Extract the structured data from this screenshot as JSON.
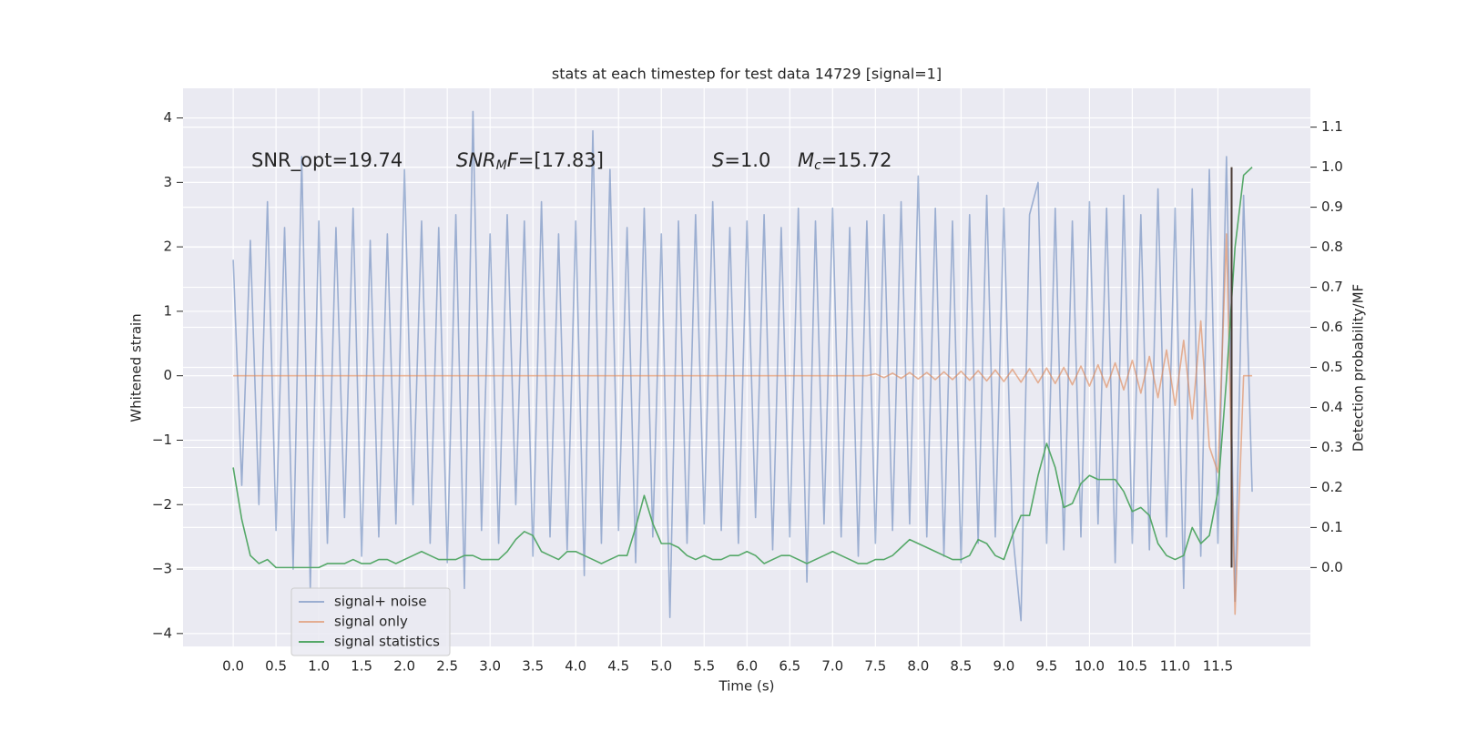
{
  "chart_data": {
    "type": "line",
    "title": "stats at each timestep for test data 14729 [signal=1]",
    "xlabel": "Time (s)",
    "ylabel": "Whitened strain",
    "y2label": "Detection probability/MF",
    "annotations": [
      {
        "text": "SNR_opt=19.74"
      },
      {
        "symbol": "SNR",
        "subscript": "M",
        "symbol_tail": "F",
        "text": "=[17.83]"
      },
      {
        "symbol": "S",
        "text": "=1.0"
      },
      {
        "symbol": "M",
        "subscript": "c",
        "text": "=15.72"
      }
    ],
    "grid": true,
    "legend": "lower left",
    "xlim": [
      -0.586,
      12.58
    ],
    "ylim": [
      -4.2,
      4.46
    ],
    "y2lim": [
      -0.197,
      1.197
    ],
    "xticks": [
      {
        "value": 0,
        "label": "0.0"
      },
      0.5,
      {
        "value": 1,
        "label": "1.0"
      },
      1.5,
      {
        "value": 2,
        "label": "2.0"
      },
      2.5,
      {
        "value": 3,
        "label": "3.0"
      },
      3.5,
      {
        "value": 4,
        "label": "4.0"
      },
      4.5,
      {
        "value": 5,
        "label": "5.0"
      },
      5.5,
      {
        "value": 6,
        "label": "6.0"
      },
      6.5,
      {
        "value": 7,
        "label": "7.0"
      },
      7.5,
      {
        "value": 8,
        "label": "8.0"
      },
      8.5,
      {
        "value": 9,
        "label": "9.0"
      },
      9.5,
      {
        "value": 10,
        "label": "10.0"
      },
      10.5,
      {
        "value": 11,
        "label": "11.0"
      },
      11.5
    ],
    "yticks": [
      {
        "value": -4,
        "label": "−4"
      },
      {
        "value": -3,
        "label": "−3"
      },
      {
        "value": -2,
        "label": "−2"
      },
      {
        "value": -1,
        "label": "−1"
      },
      0,
      1,
      2,
      3,
      4
    ],
    "y2ticks": [
      {
        "value": 0,
        "label": "0.0"
      },
      0.1,
      0.2,
      0.3,
      0.4,
      0.5,
      0.6,
      0.7,
      0.8,
      0.9,
      {
        "value": 1,
        "label": "1.0"
      },
      1.1
    ],
    "x": [
      0,
      0.1,
      0.2,
      0.3,
      0.4,
      0.5,
      0.6,
      0.7,
      0.8,
      0.9,
      1,
      1.1,
      1.2,
      1.3,
      1.4,
      1.5,
      1.6,
      1.7,
      1.8,
      1.9,
      2,
      2.1,
      2.2,
      2.3,
      2.4,
      2.5,
      2.6,
      2.7,
      2.8,
      2.9,
      3,
      3.1,
      3.2,
      3.3,
      3.4,
      3.5,
      3.6,
      3.7,
      3.8,
      3.9,
      4,
      4.1,
      4.2,
      4.3,
      4.4,
      4.5,
      4.6,
      4.7,
      4.8,
      4.9,
      5,
      5.1,
      5.2,
      5.3,
      5.4,
      5.5,
      5.6,
      5.7,
      5.8,
      5.9,
      6,
      6.1,
      6.2,
      6.3,
      6.4,
      6.5,
      6.6,
      6.7,
      6.8,
      6.9,
      7,
      7.1,
      7.2,
      7.3,
      7.4,
      7.5,
      7.6,
      7.7,
      7.8,
      7.9,
      8,
      8.1,
      8.2,
      8.3,
      8.4,
      8.5,
      8.6,
      8.7,
      8.8,
      8.9,
      9,
      9.1,
      9.2,
      9.3,
      9.4,
      9.5,
      9.6,
      9.7,
      9.8,
      9.9,
      10,
      10.1,
      10.2,
      10.3,
      10.4,
      10.5,
      10.6,
      10.7,
      10.8,
      10.9,
      11,
      11.1,
      11.2,
      11.3,
      11.4,
      11.5,
      11.6,
      11.7,
      11.8,
      11.9
    ],
    "series": [
      {
        "name": "signal+ noise",
        "color": "#4c72b0",
        "alpha": 0.5,
        "values": [
          1.8,
          -1.7,
          2.1,
          -2.0,
          2.7,
          -2.4,
          2.3,
          -3.0,
          3.4,
          -3.3,
          2.4,
          -2.6,
          2.3,
          -2.2,
          2.6,
          -2.8,
          2.1,
          -2.5,
          2.2,
          -2.3,
          3.2,
          -2.0,
          2.4,
          -2.6,
          2.3,
          -2.9,
          2.5,
          -3.3,
          4.1,
          -2.4,
          2.2,
          -2.6,
          2.5,
          -2.0,
          2.4,
          -2.8,
          2.7,
          -2.5,
          2.2,
          -2.7,
          2.4,
          -3.1,
          3.8,
          -2.6,
          3.2,
          -2.4,
          2.3,
          -2.9,
          2.6,
          -2.5,
          2.2,
          -3.75,
          2.4,
          -2.6,
          2.5,
          -2.3,
          2.7,
          -2.4,
          2.3,
          -2.6,
          2.4,
          -2.2,
          2.5,
          -2.7,
          2.3,
          -2.5,
          2.6,
          -3.2,
          2.4,
          -2.3,
          2.6,
          -2.5,
          2.3,
          -2.8,
          2.4,
          -2.6,
          2.5,
          -2.4,
          2.7,
          -2.3,
          3.1,
          -2.5,
          2.6,
          -2.8,
          2.4,
          -2.9,
          2.5,
          -2.6,
          2.8,
          -2.5,
          2.6,
          -2.4,
          -3.8,
          2.5,
          3.0,
          -2.6,
          2.6,
          -2.7,
          2.4,
          -2.5,
          2.7,
          -2.3,
          2.6,
          -2.9,
          2.8,
          -2.6,
          2.5,
          -2.7,
          2.9,
          -2.5,
          2.6,
          -3.3,
          2.9,
          -2.8,
          3.2,
          -2.6,
          3.4,
          -3.5,
          2.8,
          -1.8
        ]
      },
      {
        "name": "signal only",
        "color": "#dd8452",
        "alpha": 0.6,
        "values": [
          0,
          0,
          0,
          0,
          0,
          0,
          0,
          0,
          0,
          0,
          0,
          0,
          0,
          0,
          0,
          0,
          0,
          0,
          0,
          0,
          0,
          0,
          0,
          0,
          0,
          0,
          0,
          0,
          0,
          0,
          0,
          0,
          0,
          0,
          0,
          0,
          0,
          0,
          0,
          0,
          0,
          0,
          0,
          0,
          0,
          0,
          0,
          0,
          0,
          0,
          0,
          0,
          0,
          0,
          0,
          0,
          0,
          0,
          0,
          0,
          0,
          0,
          0,
          0,
          0,
          0,
          0,
          0,
          0,
          0,
          0,
          0,
          0,
          0,
          0,
          0.03,
          -0.03,
          0.04,
          -0.04,
          0.05,
          -0.05,
          0.05,
          -0.06,
          0.06,
          -0.06,
          0.07,
          -0.07,
          0.08,
          -0.08,
          0.09,
          -0.09,
          0.1,
          -0.1,
          0.11,
          -0.11,
          0.12,
          -0.12,
          0.13,
          -0.14,
          0.15,
          -0.16,
          0.17,
          -0.18,
          0.2,
          -0.22,
          0.24,
          -0.27,
          0.3,
          -0.34,
          0.4,
          -0.46,
          0.55,
          -0.67,
          0.85,
          -1.1,
          -1.5,
          2.2,
          -3.7,
          0,
          0
        ]
      },
      {
        "name": "signal statistics",
        "color": "#55a868",
        "alpha": 1,
        "axis": "y2",
        "values": [
          0.25,
          0.12,
          0.03,
          0.01,
          0.02,
          0,
          0,
          0,
          0,
          0,
          0,
          0.01,
          0.01,
          0.01,
          0.02,
          0.01,
          0.01,
          0.02,
          0.02,
          0.01,
          0.02,
          0.03,
          0.04,
          0.03,
          0.02,
          0.02,
          0.02,
          0.03,
          0.03,
          0.02,
          0.02,
          0.02,
          0.04,
          0.07,
          0.09,
          0.08,
          0.04,
          0.03,
          0.02,
          0.04,
          0.04,
          0.03,
          0.02,
          0.01,
          0.02,
          0.03,
          0.03,
          0.1,
          0.18,
          0.11,
          0.06,
          0.06,
          0.05,
          0.03,
          0.02,
          0.03,
          0.02,
          0.02,
          0.03,
          0.03,
          0.04,
          0.03,
          0.01,
          0.02,
          0.03,
          0.03,
          0.02,
          0.01,
          0.02,
          0.03,
          0.04,
          0.03,
          0.02,
          0.01,
          0.01,
          0.02,
          0.02,
          0.03,
          0.05,
          0.07,
          0.06,
          0.05,
          0.04,
          0.03,
          0.02,
          0.02,
          0.03,
          0.07,
          0.06,
          0.03,
          0.02,
          0.08,
          0.13,
          0.13,
          0.23,
          0.31,
          0.25,
          0.15,
          0.16,
          0.21,
          0.23,
          0.22,
          0.22,
          0.22,
          0.19,
          0.14,
          0.15,
          0.13,
          0.06,
          0.03,
          0.02,
          0.03,
          0.1,
          0.06,
          0.08,
          0.19,
          0.47,
          0.8,
          0.98,
          1
        ]
      }
    ],
    "vline": {
      "x": 11.66,
      "ymin": 0,
      "ymax": 1,
      "axis": "y2",
      "color": "#4a3b35"
    }
  }
}
